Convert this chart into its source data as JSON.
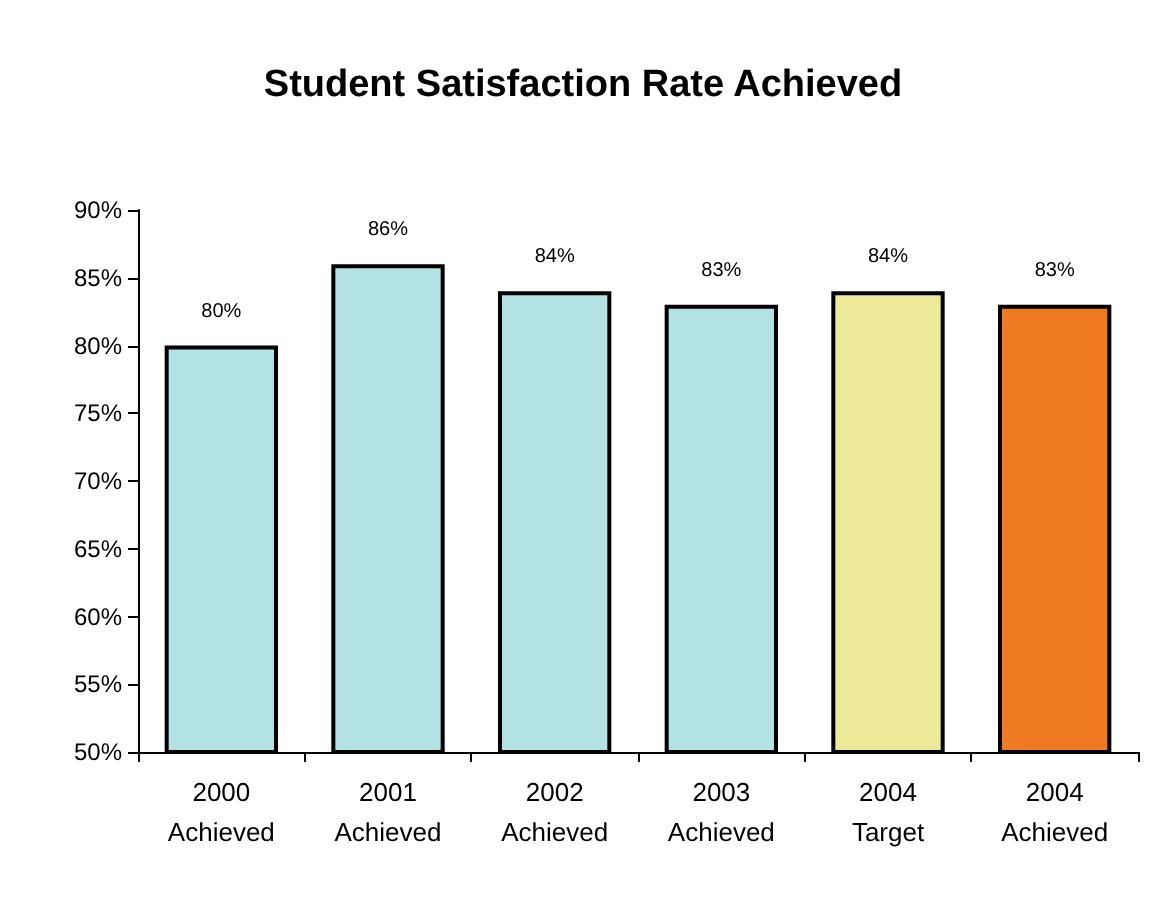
{
  "chart_data": {
    "type": "bar",
    "title": "Student Satisfaction Rate Achieved",
    "categories": [
      "2000\nAchieved",
      "2001\nAchieved",
      "2002\nAchieved",
      "2003\nAchieved",
      "2004\nTarget",
      "2004\nAchieved"
    ],
    "values": [
      80,
      86,
      84,
      83,
      84,
      83
    ],
    "colors": [
      "#b2e2e4",
      "#b2e2e4",
      "#b2e2e4",
      "#b2e2e4",
      "#ecea98",
      "#f07a22"
    ],
    "value_labels": [
      "80%",
      "86%",
      "84%",
      "83%",
      "84%",
      "83%"
    ],
    "ylim": [
      50,
      90
    ],
    "yticks": [
      {
        "value": 50,
        "label": "50%"
      },
      {
        "value": 55,
        "label": "55%"
      },
      {
        "value": 60,
        "label": "60%"
      },
      {
        "value": 65,
        "label": "65%"
      },
      {
        "value": 70,
        "label": "70%"
      },
      {
        "value": 75,
        "label": "75%"
      },
      {
        "value": 80,
        "label": "80%"
      },
      {
        "value": 85,
        "label": "85%"
      },
      {
        "value": 90,
        "label": "90%"
      }
    ],
    "tick_labels": "xy"
  }
}
